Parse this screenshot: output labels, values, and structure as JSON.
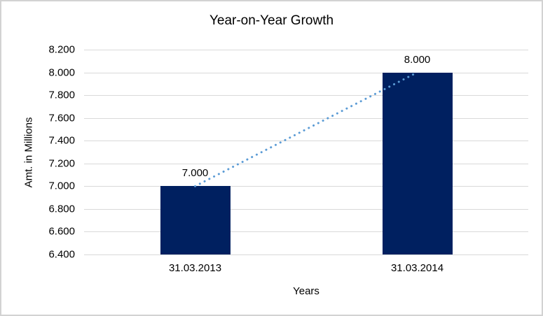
{
  "window": {
    "background": "#ffffff",
    "border_color": "#d2d2d2"
  },
  "chart_data": {
    "type": "bar",
    "title": "Year-on-Year Growth",
    "xlabel": "Years",
    "ylabel": "Amt. in Millions",
    "categories": [
      "31.03.2013",
      "31.03.2014"
    ],
    "values": [
      7.0,
      8.0
    ],
    "data_labels": [
      "7.000",
      "8.000"
    ],
    "ylim": [
      6.4,
      8.2
    ],
    "ytick_step": 0.2,
    "ytick_labels": [
      "6.400",
      "6.600",
      "6.800",
      "7.000",
      "7.200",
      "7.400",
      "7.600",
      "7.800",
      "8.000",
      "8.200"
    ],
    "grid": true,
    "legend": false,
    "colors": {
      "bar": "#002060",
      "gridline": "#d9d9d9",
      "trendline": "#5b9bd5",
      "text": "#000000"
    },
    "trendline": {
      "style": "dotted",
      "connects": "bar tops (7.000 to 8.000)"
    }
  }
}
